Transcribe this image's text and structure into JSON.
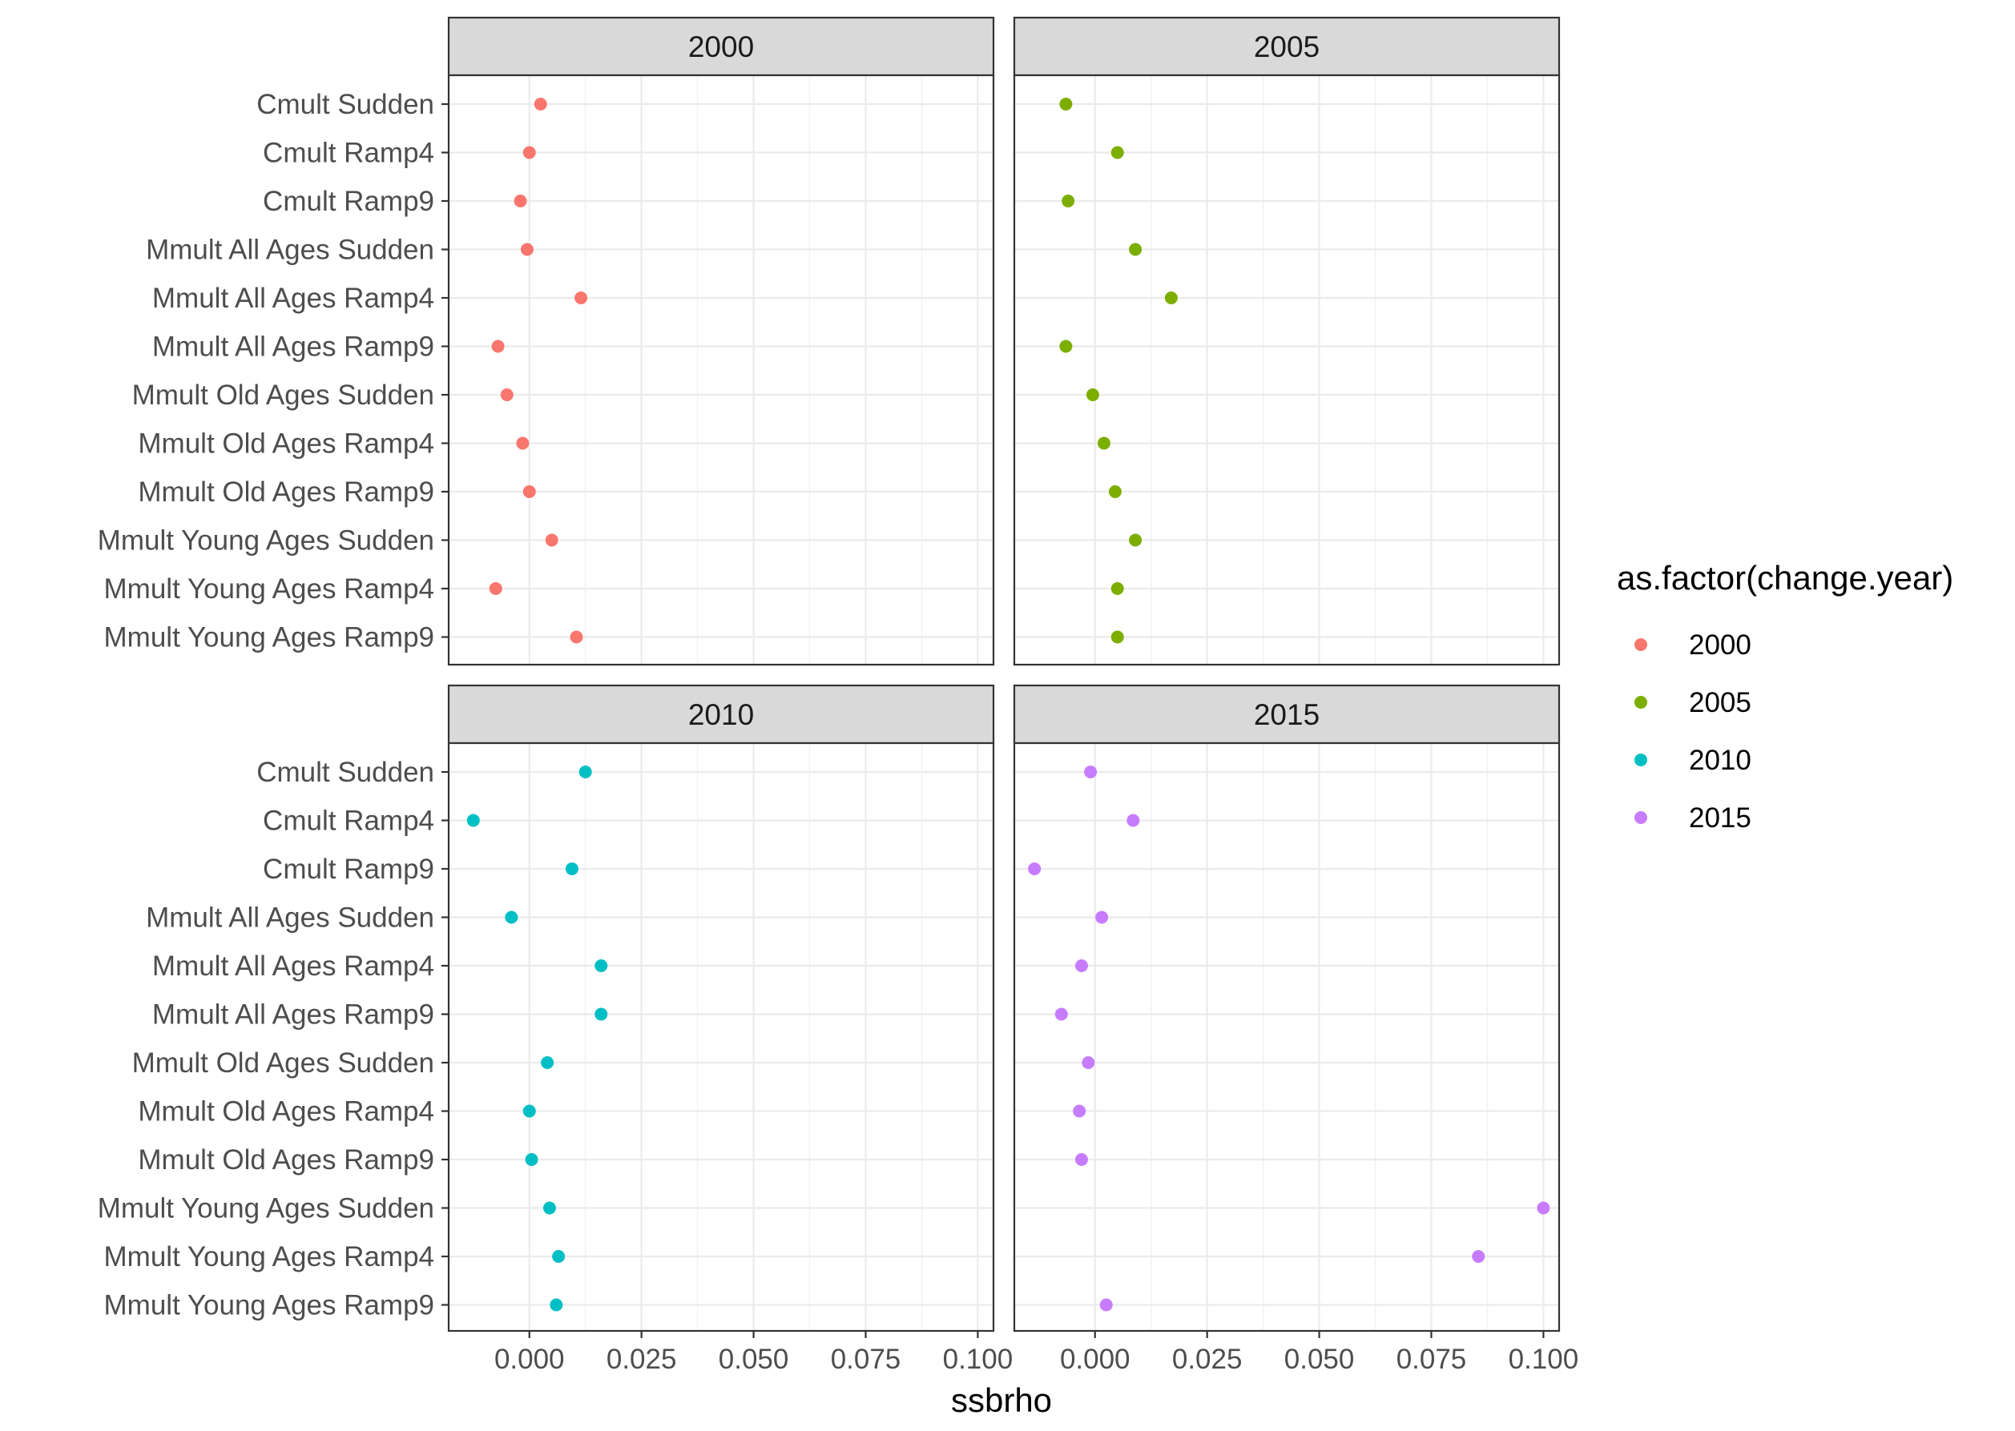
{
  "chart_data": {
    "type": "scatter",
    "facet_by": "change.year",
    "xlabel": "ssbrho",
    "ylabel": "",
    "xlim": [
      -0.018,
      0.1035
    ],
    "x_ticks": [
      0.0,
      0.025,
      0.05,
      0.075,
      0.1
    ],
    "x_tick_labels": [
      "0.000",
      "0.025",
      "0.050",
      "0.075",
      "0.100"
    ],
    "categories": [
      "Cmult  Sudden",
      "Cmult Ramp4",
      "Cmult Ramp9",
      "Mmult All Ages  Sudden",
      "Mmult All Ages Ramp4",
      "Mmult All Ages Ramp9",
      "Mmult Old Ages  Sudden",
      "Mmult Old Ages Ramp4",
      "Mmult Old Ages Ramp9",
      "Mmult Young Ages  Sudden",
      "Mmult Young Ages Ramp4",
      "Mmult Young Ages Ramp9"
    ],
    "panels": [
      {
        "label": "2000",
        "color": "#F8766D",
        "values": [
          0.0025,
          0.0,
          -0.002,
          -0.0005,
          0.0115,
          -0.007,
          -0.005,
          -0.0015,
          0.0,
          0.005,
          -0.0075,
          0.0105
        ]
      },
      {
        "label": "2005",
        "color": "#7CAE00",
        "values": [
          -0.0065,
          0.005,
          -0.006,
          0.009,
          0.017,
          -0.0065,
          -0.0005,
          0.002,
          0.0045,
          0.009,
          0.005,
          0.005
        ]
      },
      {
        "label": "2010",
        "color": "#00BFC4",
        "values": [
          0.0125,
          -0.0125,
          0.0095,
          -0.004,
          0.016,
          0.016,
          0.004,
          0.0,
          0.0005,
          0.0045,
          0.0065,
          0.006
        ]
      },
      {
        "label": "2015",
        "color": "#C77CFF",
        "values": [
          -0.001,
          0.0085,
          -0.0135,
          0.0015,
          -0.003,
          -0.0075,
          -0.0015,
          -0.0035,
          -0.003,
          0.1,
          0.0855,
          0.0025
        ]
      }
    ],
    "legend": {
      "title": "as.factor(change.year)",
      "position": "right",
      "entries": [
        {
          "label": "2000",
          "color": "#F8766D"
        },
        {
          "label": "2005",
          "color": "#7CAE00"
        },
        {
          "label": "2010",
          "color": "#00BFC4"
        },
        {
          "label": "2015",
          "color": "#C77CFF"
        }
      ]
    },
    "grid": true,
    "theme": "bw"
  }
}
